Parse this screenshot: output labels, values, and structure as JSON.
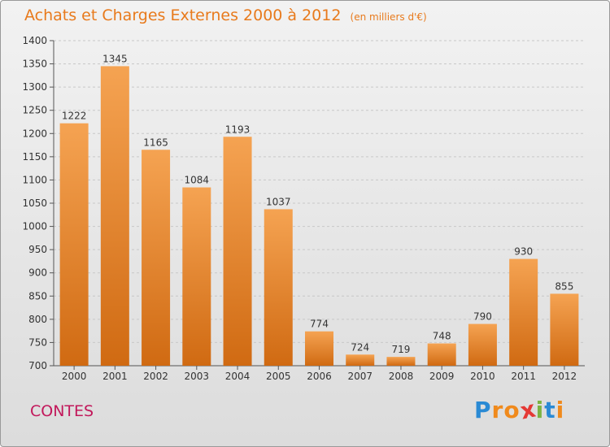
{
  "title": "Achats et Charges Externes 2000 à 2012",
  "unit": "(en milliers d'€)",
  "commune": "CONTES",
  "logo": {
    "letters": [
      "P",
      "r",
      "o",
      "x",
      "i",
      "t",
      "i"
    ],
    "colors": [
      "#2a8ad4",
      "#f08a1c",
      "#f08a1c",
      "#e53935",
      "#7cb342",
      "#2a8ad4",
      "#f08a1c"
    ]
  },
  "colors": {
    "bar_top": "#f5a352",
    "bar_bottom": "#d06a12",
    "title": "#e87a1c",
    "commune": "#c2185b"
  },
  "chart_data": {
    "type": "bar",
    "categories": [
      "2000",
      "2001",
      "2002",
      "2003",
      "2004",
      "2005",
      "2006",
      "2007",
      "2008",
      "2009",
      "2010",
      "2011",
      "2012"
    ],
    "values": [
      1222,
      1345,
      1165,
      1084,
      1193,
      1037,
      774,
      724,
      719,
      748,
      790,
      930,
      855
    ],
    "title": "Achats et Charges Externes 2000 à 2012",
    "ylim": [
      700,
      1400
    ],
    "yticks": [
      700,
      750,
      800,
      850,
      900,
      950,
      1000,
      1050,
      1100,
      1150,
      1200,
      1250,
      1300,
      1350,
      1400
    ],
    "grid": true
  }
}
